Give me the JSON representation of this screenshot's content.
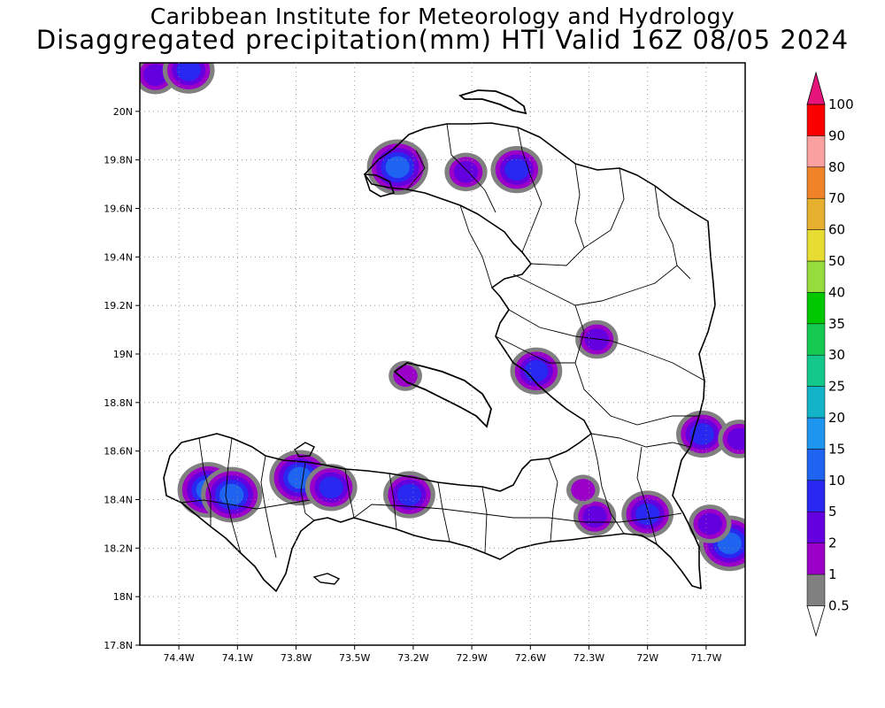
{
  "header": {
    "title": "Caribbean Institute for Meteorology and Hydrology",
    "subtitle": "Disaggregated precipitation(mm) HTI Valid 16Z 08/05 2024"
  },
  "map": {
    "lon_range": [
      -74.6,
      -71.5
    ],
    "lat_range": [
      17.8,
      20.2
    ],
    "lon_ticks": [
      {
        "value": -74.4,
        "label": "74.4W"
      },
      {
        "value": -74.1,
        "label": "74.1W"
      },
      {
        "value": -73.8,
        "label": "73.8W"
      },
      {
        "value": -73.5,
        "label": "73.5W"
      },
      {
        "value": -73.2,
        "label": "73.2W"
      },
      {
        "value": -72.9,
        "label": "72.9W"
      },
      {
        "value": -72.6,
        "label": "72.6W"
      },
      {
        "value": -72.3,
        "label": "72.3W"
      },
      {
        "value": -72.0,
        "label": "72W"
      },
      {
        "value": -71.7,
        "label": "71.7W"
      }
    ],
    "lat_ticks": [
      {
        "value": 20.0,
        "label": "20N"
      },
      {
        "value": 19.8,
        "label": "19.8N"
      },
      {
        "value": 19.6,
        "label": "19.6N"
      },
      {
        "value": 19.4,
        "label": "19.4N"
      },
      {
        "value": 19.2,
        "label": "19.2N"
      },
      {
        "value": 19.0,
        "label": "19N"
      },
      {
        "value": 18.8,
        "label": "18.8N"
      },
      {
        "value": 18.6,
        "label": "18.6N"
      },
      {
        "value": 18.4,
        "label": "18.4N"
      },
      {
        "value": 18.2,
        "label": "18.2N"
      },
      {
        "value": 18.0,
        "label": "18N"
      },
      {
        "value": 17.8,
        "label": "17.8N"
      }
    ],
    "grid": true
  },
  "legend": {
    "labels": [
      "0.5",
      "1",
      "2",
      "5",
      "10",
      "15",
      "20",
      "25",
      "30",
      "35",
      "40",
      "50",
      "60",
      "70",
      "80",
      "90",
      "100"
    ],
    "colors": [
      "#808080",
      "#9a00c8",
      "#6400e0",
      "#2828f0",
      "#1e64f0",
      "#1e96f0",
      "#14b4c8",
      "#14c88c",
      "#14c850",
      "#00c800",
      "#96dc3c",
      "#e6dc32",
      "#e6af2d",
      "#f08228",
      "#faa0a0",
      "#fa0000",
      "#f03c50"
    ],
    "top_color": "#e6147a"
  },
  "precip_cells": [
    {
      "lon": -74.25,
      "lat": 18.44,
      "mm": 10
    },
    {
      "lon": -74.13,
      "lat": 18.42,
      "mm": 10
    },
    {
      "lon": -73.78,
      "lat": 18.49,
      "mm": 10
    },
    {
      "lon": -73.62,
      "lat": 18.45,
      "mm": 5
    },
    {
      "lon": -73.22,
      "lat": 18.42,
      "mm": 5
    },
    {
      "lon": -73.28,
      "lat": 19.77,
      "mm": 10
    },
    {
      "lon": -72.93,
      "lat": 19.75,
      "mm": 2
    },
    {
      "lon": -72.67,
      "lat": 19.76,
      "mm": 5
    },
    {
      "lon": -72.26,
      "lat": 19.06,
      "mm": 2
    },
    {
      "lon": -72.57,
      "lat": 18.93,
      "mm": 5
    },
    {
      "lon": -71.72,
      "lat": 18.67,
      "mm": 5
    },
    {
      "lon": -71.53,
      "lat": 18.65,
      "mm": 2
    },
    {
      "lon": -72.0,
      "lat": 18.34,
      "mm": 5
    },
    {
      "lon": -72.27,
      "lat": 18.33,
      "mm": 2
    },
    {
      "lon": -72.33,
      "lat": 18.44,
      "mm": 1
    },
    {
      "lon": -71.58,
      "lat": 18.22,
      "mm": 10
    },
    {
      "lon": -71.68,
      "lat": 18.3,
      "mm": 2
    },
    {
      "lon": -74.52,
      "lat": 20.15,
      "mm": 2
    },
    {
      "lon": -74.35,
      "lat": 20.17,
      "mm": 5
    },
    {
      "lon": -73.24,
      "lat": 18.91,
      "mm": 1
    }
  ]
}
